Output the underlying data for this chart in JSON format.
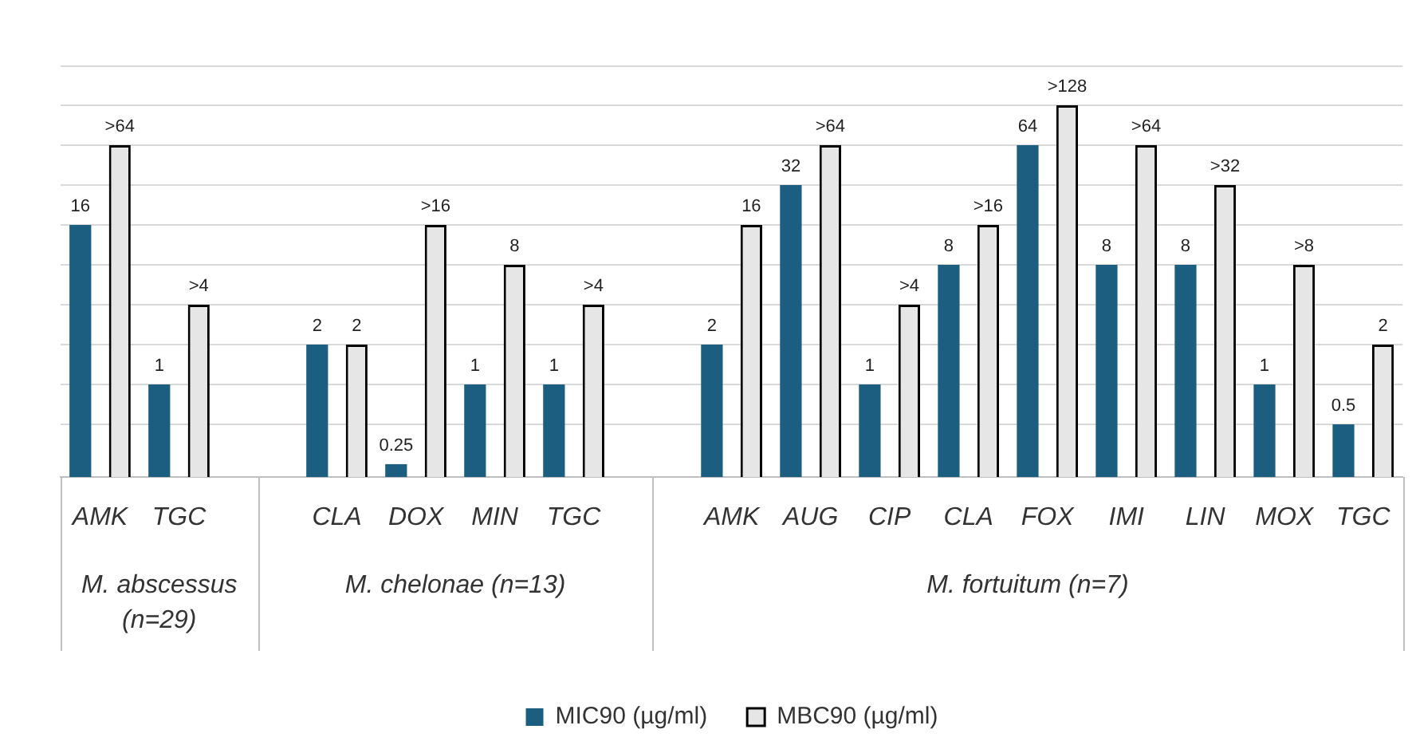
{
  "chart_data": {
    "type": "bar",
    "categories": [
      "AMK",
      "TGC",
      null,
      "CLA",
      "DOX",
      "MIN",
      "TGC",
      null,
      "AMK",
      "AUG",
      "CIP",
      "CLA",
      "FOX",
      "IMI",
      "LIN",
      "MOX",
      "TGC"
    ],
    "series": [
      {
        "name": "MIC90 (µg/ml)",
        "color": "#1b5e80",
        "values": [
          16,
          1,
          null,
          2,
          0.25,
          1,
          1,
          null,
          2,
          32,
          1,
          8,
          64,
          8,
          8,
          1,
          0.5
        ],
        "value_labels": [
          "16",
          "1",
          null,
          "2",
          "0.25",
          "1",
          "1",
          null,
          "2",
          "32",
          "1",
          "8",
          "64",
          "8",
          "8",
          "1",
          "0.5"
        ]
      },
      {
        "name": "MBC90 (µg/ml)",
        "color": "#e6e6e6",
        "values": [
          64,
          4,
          null,
          2,
          16,
          8,
          4,
          null,
          16,
          64,
          4,
          16,
          128,
          64,
          32,
          8,
          2
        ],
        "value_labels": [
          ">64",
          ">4",
          null,
          "2",
          ">16",
          "8",
          ">4",
          null,
          "16",
          ">64",
          ">4",
          ">16",
          ">128",
          ">64",
          ">32",
          ">8",
          "2"
        ]
      }
    ],
    "annotations": [
      "M. abscessus (n=29)",
      "M. chelonae (n=13)",
      "M. fortuitum (n=7)"
    ],
    "log": "y",
    "ylim": [
      0.2,
      256
    ],
    "yticks": [
      {
        "value": 0.5,
        "label": null
      },
      {
        "value": 1,
        "label": null
      },
      {
        "value": 2,
        "label": null
      },
      {
        "value": 4,
        "label": null
      },
      {
        "value": 8,
        "label": null
      },
      {
        "value": 16,
        "label": null
      },
      {
        "value": 32,
        "label": null
      },
      {
        "value": 64,
        "label": null
      },
      {
        "value": 128,
        "label": null
      }
    ],
    "grid": "y",
    "tick_labels": "x",
    "legend": "bottom"
  }
}
